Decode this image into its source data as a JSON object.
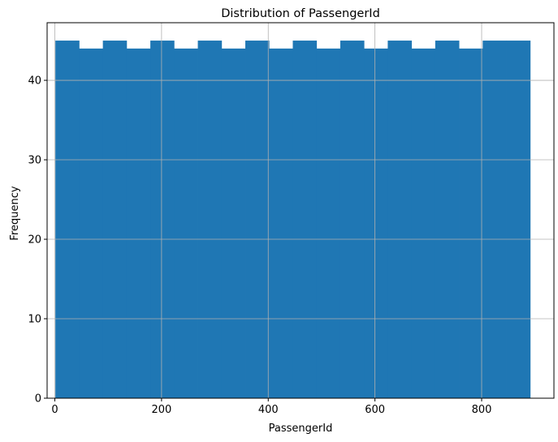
{
  "chart_data": {
    "type": "bar",
    "title": "Distribution of PassengerId",
    "xlabel": "PassengerId",
    "ylabel": "Frequency",
    "xlim": [
      -14.5,
      935.5
    ],
    "ylim": [
      0,
      47.25
    ],
    "xticks": [
      0,
      200,
      400,
      600,
      800
    ],
    "yticks": [
      0,
      10,
      20,
      30,
      40
    ],
    "grid": true,
    "bar_color": "#1f77b4",
    "bins": [
      1,
      45.5,
      90,
      134.5,
      179,
      223.5,
      268,
      312.5,
      357,
      401.5,
      446,
      490.5,
      535,
      579.5,
      624,
      668.5,
      713,
      757.5,
      802,
      846.5,
      891
    ],
    "counts": [
      45,
      44,
      45,
      44,
      45,
      44,
      45,
      44,
      45,
      44,
      45,
      44,
      45,
      44,
      45,
      44,
      45,
      44,
      45,
      45
    ]
  }
}
